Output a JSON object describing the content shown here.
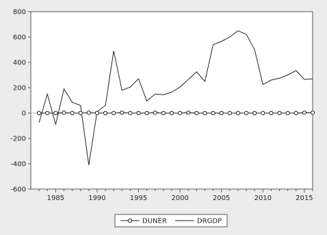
{
  "chart_data": {
    "type": "line",
    "title": "",
    "xlabel": "",
    "ylabel": "",
    "xlim": [
      1982,
      2016
    ],
    "ylim": [
      -600,
      800
    ],
    "y_ticks": [
      800,
      600,
      400,
      200,
      0,
      -200,
      -400,
      -600
    ],
    "x_ticks": [
      1985,
      1990,
      1995,
      2000,
      2005,
      2010,
      2015
    ],
    "grid": false,
    "legend_position": "bottom-center",
    "x": [
      1983,
      1984,
      1985,
      1986,
      1987,
      1988,
      1989,
      1990,
      1991,
      1992,
      1993,
      1994,
      1995,
      1996,
      1997,
      1998,
      1999,
      2000,
      2001,
      2002,
      2003,
      2004,
      2005,
      2006,
      2007,
      2008,
      2009,
      2010,
      2011,
      2012,
      2013,
      2014,
      2015,
      2016
    ],
    "series": [
      {
        "name": "DUNER",
        "marker": "circle",
        "color": "#222222",
        "values": [
          0,
          0,
          0,
          3,
          0,
          0,
          3,
          0,
          0,
          0,
          3,
          0,
          0,
          0,
          3,
          0,
          0,
          0,
          3,
          0,
          0,
          0,
          0,
          0,
          0,
          0,
          0,
          0,
          0,
          0,
          0,
          0,
          3,
          3
        ]
      },
      {
        "name": "DRGDP",
        "marker": "none",
        "color": "#222222",
        "values": [
          -75,
          150,
          -90,
          190,
          85,
          60,
          -410,
          10,
          60,
          490,
          180,
          205,
          270,
          95,
          150,
          145,
          165,
          205,
          265,
          325,
          250,
          540,
          565,
          600,
          650,
          620,
          500,
          225,
          260,
          275,
          300,
          335,
          265,
          270
        ]
      }
    ]
  }
}
